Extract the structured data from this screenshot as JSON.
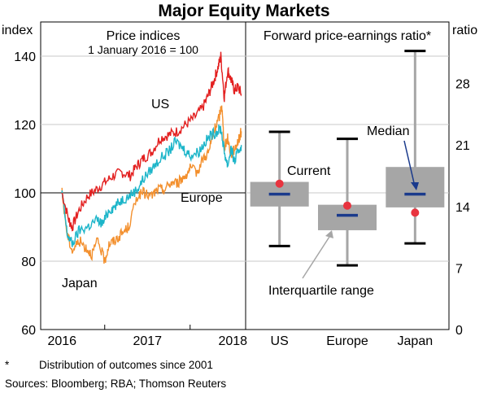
{
  "chart_data": [
    {
      "type": "line",
      "title": "Major Equity Markets",
      "panel_title": "Price indices",
      "subtitle": "1 January 2016 = 100",
      "axis_unit_label": "index",
      "ylim": [
        60,
        150
      ],
      "yticks": [
        60,
        80,
        100,
        120,
        140
      ],
      "reference_line": 100,
      "x_range": [
        2015.75,
        2018.15
      ],
      "x_tick_labels": [
        {
          "label": "2016",
          "at": 2016.0
        },
        {
          "label": "2017",
          "at": 2017.0
        },
        {
          "label": "2018",
          "at": 2018.0
        }
      ],
      "series": [
        {
          "name": "US",
          "color": "#e32020",
          "label_color": "#e32020",
          "points": [
            [
              2016.0,
              100
            ],
            [
              2016.08,
              92
            ],
            [
              2016.12,
              90
            ],
            [
              2016.2,
              95
            ],
            [
              2016.3,
              99
            ],
            [
              2016.4,
              101
            ],
            [
              2016.5,
              103
            ],
            [
              2016.6,
              105
            ],
            [
              2016.7,
              106
            ],
            [
              2016.8,
              105
            ],
            [
              2016.88,
              108
            ],
            [
              2016.95,
              110
            ],
            [
              2017.05,
              112
            ],
            [
              2017.15,
              116
            ],
            [
              2017.25,
              117
            ],
            [
              2017.35,
              118
            ],
            [
              2017.45,
              120
            ],
            [
              2017.55,
              122
            ],
            [
              2017.65,
              125
            ],
            [
              2017.72,
              129
            ],
            [
              2017.78,
              133
            ],
            [
              2017.83,
              137
            ],
            [
              2017.86,
              140
            ],
            [
              2017.9,
              128
            ],
            [
              2017.94,
              136
            ],
            [
              2017.98,
              133
            ],
            [
              2018.02,
              130
            ],
            [
              2018.06,
              131
            ],
            [
              2018.1,
              129
            ]
          ]
        },
        {
          "name": "Europe",
          "color": "#1cb5c9",
          "label_color": "#1cb5c9",
          "points": [
            [
              2016.0,
              100
            ],
            [
              2016.06,
              88
            ],
            [
              2016.12,
              85
            ],
            [
              2016.2,
              89
            ],
            [
              2016.3,
              90
            ],
            [
              2016.4,
              92
            ],
            [
              2016.48,
              91
            ],
            [
              2016.55,
              95
            ],
            [
              2016.62,
              96
            ],
            [
              2016.7,
              98
            ],
            [
              2016.78,
              99
            ],
            [
              2016.88,
              101
            ],
            [
              2016.95,
              104
            ],
            [
              2017.05,
              107
            ],
            [
              2017.15,
              110
            ],
            [
              2017.25,
              112
            ],
            [
              2017.33,
              115
            ],
            [
              2017.42,
              113
            ],
            [
              2017.5,
              111
            ],
            [
              2017.6,
              112
            ],
            [
              2017.68,
              115
            ],
            [
              2017.75,
              117
            ],
            [
              2017.82,
              118
            ],
            [
              2017.86,
              119
            ],
            [
              2017.9,
              112
            ],
            [
              2017.94,
              108
            ],
            [
              2017.98,
              113
            ],
            [
              2018.02,
              109
            ],
            [
              2018.06,
              112
            ],
            [
              2018.1,
              114
            ]
          ]
        },
        {
          "name": "Japan",
          "color": "#f3902e",
          "label_color": "#f3902e",
          "points": [
            [
              2016.0,
              100
            ],
            [
              2016.06,
              88
            ],
            [
              2016.12,
              83
            ],
            [
              2016.2,
              86
            ],
            [
              2016.28,
              84
            ],
            [
              2016.35,
              82
            ],
            [
              2016.42,
              86
            ],
            [
              2016.5,
              80
            ],
            [
              2016.55,
              85
            ],
            [
              2016.62,
              86
            ],
            [
              2016.7,
              88
            ],
            [
              2016.78,
              90
            ],
            [
              2016.88,
              99
            ],
            [
              2016.95,
              100
            ],
            [
              2017.05,
              99
            ],
            [
              2017.12,
              101
            ],
            [
              2017.2,
              101
            ],
            [
              2017.28,
              103
            ],
            [
              2017.36,
              103
            ],
            [
              2017.44,
              105
            ],
            [
              2017.5,
              107
            ],
            [
              2017.58,
              106
            ],
            [
              2017.65,
              110
            ],
            [
              2017.72,
              112
            ],
            [
              2017.78,
              118
            ],
            [
              2017.84,
              122
            ],
            [
              2017.87,
              126
            ],
            [
              2017.9,
              113
            ],
            [
              2017.94,
              116
            ],
            [
              2017.98,
              111
            ],
            [
              2018.02,
              113
            ],
            [
              2018.06,
              115
            ],
            [
              2018.1,
              118
            ]
          ]
        }
      ]
    },
    {
      "type": "box",
      "panel_title": "Forward price-earnings ratio*",
      "axis_unit_label": "ratio",
      "ylim": [
        0,
        35
      ],
      "yticks": [
        0,
        7,
        14,
        21,
        28
      ],
      "categories": [
        "US",
        "Europe",
        "Japan"
      ],
      "boxes": [
        {
          "category": "US",
          "whisker_low": 9.5,
          "q1": 14.0,
          "median": 15.4,
          "q3": 16.8,
          "whisker_high": 22.5,
          "current": 16.6
        },
        {
          "category": "Europe",
          "whisker_low": 7.3,
          "q1": 11.3,
          "median": 13.0,
          "q3": 14.2,
          "whisker_high": 21.7,
          "current": 14.1
        },
        {
          "category": "Japan",
          "whisker_low": 9.8,
          "q1": 13.9,
          "median": 15.4,
          "q3": 18.5,
          "whisker_high": 31.7,
          "current": 13.3
        }
      ],
      "box_color": "#a6a6a6",
      "median_color": "#1a3a8c",
      "current_color": "#e8343f",
      "annotations": [
        {
          "text": "Current",
          "color": "#e32020"
        },
        {
          "text": "Median",
          "color": "#1a3a8c"
        },
        {
          "text": "Interquartile range",
          "color": "#a6a6a6"
        }
      ]
    }
  ],
  "footnote": {
    "marker": "*",
    "text": "Distribution of outcomes since 2001"
  },
  "sources": "Sources: Bloomberg; RBA; Thomson Reuters"
}
